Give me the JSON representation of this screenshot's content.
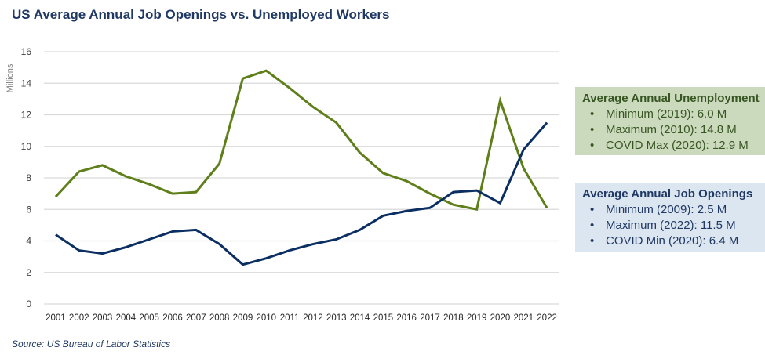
{
  "chart_data": {
    "type": "line",
    "title": "US Average Annual Job Openings vs. Unemployed Workers",
    "xlabel": "",
    "ylabel": "Millions",
    "ylim": [
      0,
      16
    ],
    "yticks": [
      0,
      2,
      4,
      6,
      8,
      10,
      12,
      14,
      16
    ],
    "grid": true,
    "categories": [
      "2001",
      "2002",
      "2003",
      "2004",
      "2005",
      "2006",
      "2007",
      "2008",
      "2009",
      "2010",
      "2011",
      "2012",
      "2013",
      "2014",
      "2015",
      "2016",
      "2017",
      "2018",
      "2019",
      "2020",
      "2021",
      "2022"
    ],
    "series": [
      {
        "name": "Average Annual Unemployment",
        "color": "#5f7f1a",
        "values": [
          6.8,
          8.4,
          8.8,
          8.1,
          7.6,
          7.0,
          7.1,
          8.9,
          14.3,
          14.8,
          13.7,
          12.5,
          11.5,
          9.6,
          8.3,
          7.8,
          7.0,
          6.3,
          6.0,
          12.9,
          8.6,
          6.1
        ]
      },
      {
        "name": "Average Annual Job Openings",
        "color": "#0b2f63",
        "values": [
          4.4,
          3.4,
          3.2,
          3.6,
          4.1,
          4.6,
          4.7,
          3.8,
          2.5,
          2.9,
          3.4,
          3.8,
          4.1,
          4.7,
          5.6,
          5.9,
          6.1,
          7.1,
          7.2,
          6.4,
          9.8,
          11.5
        ]
      }
    ]
  },
  "callouts": {
    "unemployment": {
      "title": "Average Annual Unemployment",
      "items": [
        "Minimum (2019): 6.0 M",
        "Maximum (2010): 14.8 M",
        "COVID Max (2020): 12.9 M"
      ]
    },
    "openings": {
      "title": "Average Annual Job Openings",
      "items": [
        "Minimum (2009): 2.5 M",
        "Maximum (2022): 11.5 M",
        "COVID Min (2020): 6.4 M"
      ]
    }
  },
  "source": "Source: US Bureau of Labor Statistics"
}
